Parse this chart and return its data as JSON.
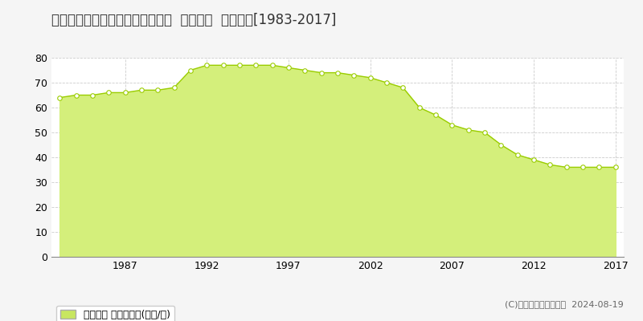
{
  "title": "徳島県徳島市伊賀町３丁目５番４  地価公示  地価推移[1983-2017]",
  "years": [
    1983,
    1984,
    1985,
    1986,
    1987,
    1988,
    1989,
    1990,
    1991,
    1992,
    1993,
    1994,
    1995,
    1996,
    1997,
    1998,
    1999,
    2000,
    2001,
    2002,
    2003,
    2004,
    2005,
    2006,
    2007,
    2008,
    2009,
    2010,
    2011,
    2012,
    2013,
    2014,
    2015,
    2016,
    2017
  ],
  "values": [
    64,
    65,
    65,
    66,
    66,
    67,
    67,
    68,
    75,
    77,
    77,
    77,
    77,
    77,
    76,
    75,
    74,
    74,
    73,
    72,
    70,
    68,
    60,
    57,
    53,
    51,
    50,
    45,
    41,
    39,
    37,
    36,
    36,
    36,
    36
  ],
  "line_color": "#9acd00",
  "fill_color": "#d4ef7b",
  "fill_alpha": 1.0,
  "marker_color": "white",
  "marker_edge_color": "#9acd00",
  "ylim": [
    0,
    80
  ],
  "yticks": [
    0,
    10,
    20,
    30,
    40,
    50,
    60,
    70,
    80
  ],
  "xtick_years": [
    1987,
    1992,
    1997,
    2002,
    2007,
    2012,
    2017
  ],
  "background_color": "#f5f5f5",
  "plot_bg_color": "#ffffff",
  "grid_color": "#cccccc",
  "legend_label": "地価公示 平均坪単価(万円/坪)",
  "legend_color": "#c8e660",
  "copyright_text": "(C)土地価格ドットコム  2024-08-19",
  "title_fontsize": 12,
  "tick_fontsize": 9,
  "legend_fontsize": 9,
  "copyright_fontsize": 8
}
